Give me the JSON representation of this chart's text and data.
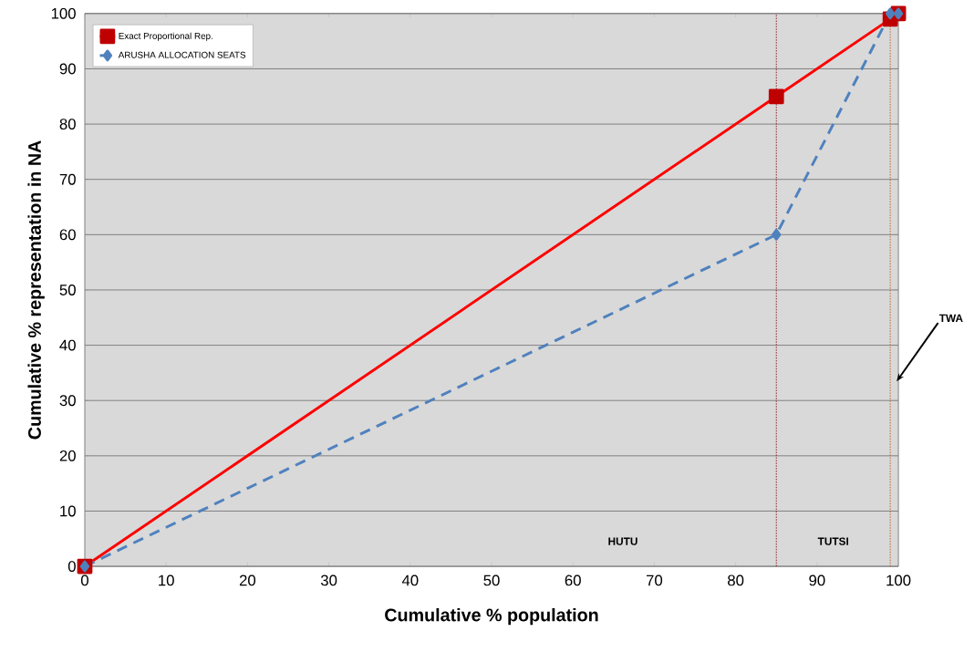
{
  "chart_data": {
    "type": "line",
    "xlabel": "Cumulative % population",
    "ylabel": "Cumulative % representation in NA",
    "x": [
      0,
      85,
      99,
      100
    ],
    "series": [
      {
        "name": "Exact Proportional Rep.",
        "color": "#ff0000",
        "values": [
          0,
          85,
          99,
          100
        ],
        "marker": "square",
        "line_style": "solid"
      },
      {
        "name": "ARUSHA ALLOCATION SEATS",
        "color": "#4f81bd",
        "values": [
          0,
          60,
          100,
          100
        ],
        "marker": "diamond",
        "line_style": "dashed"
      }
    ],
    "xlim": [
      0,
      100
    ],
    "ylim": [
      0,
      100
    ],
    "xticks": [
      0,
      10,
      20,
      30,
      40,
      50,
      60,
      70,
      80,
      90,
      100
    ],
    "yticks": [
      0,
      10,
      20,
      30,
      40,
      50,
      60,
      70,
      80,
      90,
      100
    ],
    "grid": "y",
    "legend": "top left",
    "ref_lines": [
      {
        "axis": "x",
        "value": 85,
        "color": "#8b1a1a",
        "line_style": "dotted"
      },
      {
        "axis": "x",
        "value": 99,
        "color": "#c0602a",
        "line_style": "dotted"
      }
    ],
    "annotations": [
      "HUTU",
      "TUTSI",
      "TWA"
    ]
  }
}
